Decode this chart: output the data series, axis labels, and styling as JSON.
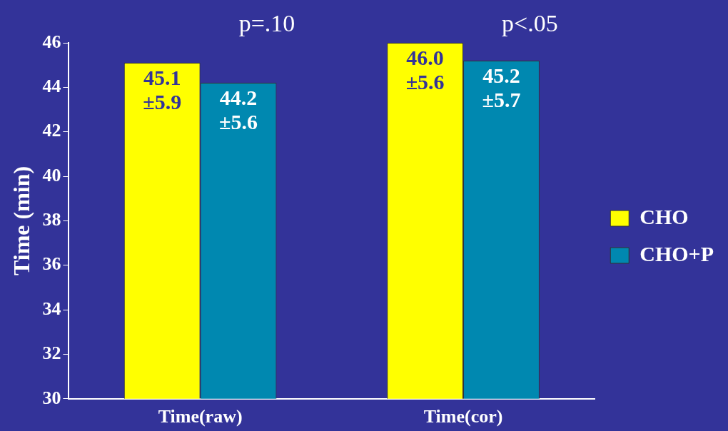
{
  "chart_data": {
    "type": "bar",
    "ylabel": "Time (min)",
    "categories": [
      "Time(raw)",
      "Time(cor)"
    ],
    "series": [
      {
        "name": "CHO",
        "color": "#ffff00",
        "values": [
          45.1,
          46.0
        ],
        "value_labels": [
          "45.1 ±5.9",
          "46.0 ±5.6"
        ]
      },
      {
        "name": "CHO+P",
        "color": "#0088b0",
        "values": [
          44.2,
          45.2
        ],
        "value_labels": [
          "44.2 ±5.6",
          "45.2 ±5.7"
        ]
      }
    ],
    "ylim": [
      30,
      46
    ],
    "yticks": [
      30,
      32,
      34,
      36,
      38,
      40,
      42,
      44,
      46
    ],
    "grid": false,
    "legend": "right",
    "annotations": [
      "p=.10",
      "p<.05"
    ]
  }
}
